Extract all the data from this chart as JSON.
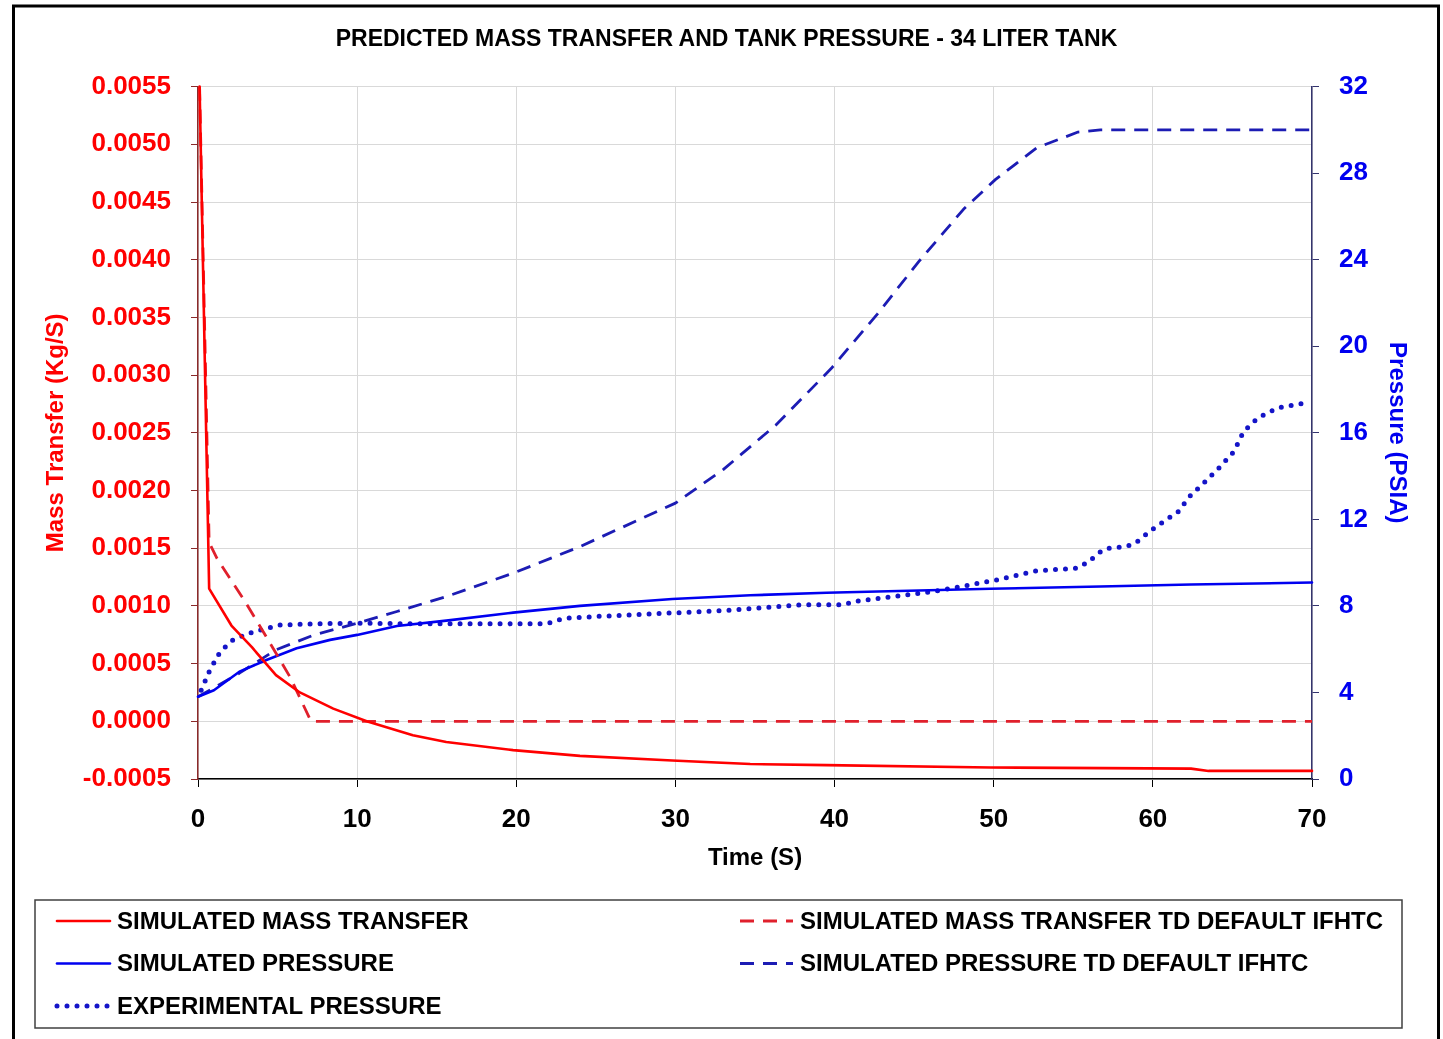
{
  "chart_data": {
    "type": "line",
    "title": "PREDICTED MASS TRANSFER AND TANK PRESSURE - 34 LITER TANK",
    "xlabel": "Time (S)",
    "ylabel": "Mass Transfer (Kg/S)",
    "y2label": "Pressure (PSIA)",
    "xlim": [
      0,
      70
    ],
    "xticks": [
      0,
      10,
      20,
      30,
      40,
      50,
      60,
      70
    ],
    "ylim": [
      -0.0005,
      0.0055
    ],
    "yticks": [
      {
        "value": -0.0005,
        "label": "-0.0005"
      },
      {
        "value": 0,
        "label": "0.0000"
      },
      {
        "value": 0.0005,
        "label": "0.0005"
      },
      {
        "value": 0.001,
        "label": "0.0010"
      },
      {
        "value": 0.0015,
        "label": "0.0015"
      },
      {
        "value": 0.002,
        "label": "0.0020"
      },
      {
        "value": 0.0025,
        "label": "0.0025"
      },
      {
        "value": 0.003,
        "label": "0.0030"
      },
      {
        "value": 0.0035,
        "label": "0.0035"
      },
      {
        "value": 0.004,
        "label": "0.0040"
      },
      {
        "value": 0.0045,
        "label": "0.0045"
      },
      {
        "value": 0.005,
        "label": "0.0050"
      },
      {
        "value": 0.0055,
        "label": "0.0055"
      }
    ],
    "y2lim": [
      0,
      32
    ],
    "y2ticks": [
      0,
      4,
      8,
      12,
      16,
      20,
      24,
      28,
      32
    ],
    "grid": true,
    "legend": "bottom",
    "marker": "none",
    "series": [
      {
        "name": "SIMULATED MASS TRANSFER",
        "color": "#ff0000",
        "line_style": "solid",
        "axis": "y",
        "x": [
          0.1,
          0.7,
          2.1,
          3.4,
          4.9,
          6.4,
          8.5,
          10.6,
          13.5,
          15.6,
          19.8,
          24,
          29.8,
          34.7,
          39.5,
          49.8,
          62.4,
          63.5,
          70
        ],
        "values": [
          0.0055,
          0.00115,
          0.00083,
          0.00064,
          0.0004,
          0.00025,
          0.00011,
          0.0,
          -0.00012,
          -0.00018,
          -0.00025,
          -0.0003,
          -0.00034,
          -0.00037,
          -0.00038,
          -0.0004,
          -0.00041,
          -0.00043,
          -0.00043
        ]
      },
      {
        "name": "SIMULATED MASS TRANSFER TD DEFAULT IFHTC",
        "color": "#e0202c",
        "line_style": "dashed",
        "axis": "y",
        "x": [
          0.1,
          0.7,
          1.2,
          2.9,
          4.3,
          5.8,
          7.1,
          70
        ],
        "values": [
          0.0055,
          0.00155,
          0.00141,
          0.00105,
          0.00073,
          0.00038,
          0.0,
          0.0
        ]
      },
      {
        "name": "SIMULATED PRESSURE",
        "color": "#0000f0",
        "line_style": "solid",
        "axis": "y2",
        "x": [
          0,
          1,
          2.6,
          4.3,
          6.2,
          8.3,
          10,
          12.5,
          15.6,
          19.8,
          24,
          29.8,
          34.7,
          39.5,
          49.8,
          56.7,
          62.4,
          70
        ],
        "values": [
          3.8,
          4.1,
          4.96,
          5.5,
          6.04,
          6.43,
          6.66,
          7.07,
          7.32,
          7.69,
          8.0,
          8.32,
          8.49,
          8.61,
          8.79,
          8.9,
          8.99,
          9.08
        ]
      },
      {
        "name": "SIMULATED PRESSURE TD DEFAULT IFHTC",
        "color": "#1c1cb4",
        "line_style": "dashed",
        "axis": "y2",
        "x": [
          0,
          2.6,
          4.9,
          7.3,
          10,
          12.5,
          15.6,
          19.8,
          24,
          30,
          33,
          36.3,
          39.8,
          42.7,
          45.3,
          48.1,
          50.1,
          52.7,
          55.3,
          56.7,
          70
        ],
        "values": [
          3.8,
          4.89,
          5.97,
          6.66,
          7.2,
          7.74,
          8.43,
          9.51,
          10.74,
          12.75,
          14.3,
          16.35,
          18.98,
          21.5,
          23.92,
          26.33,
          27.7,
          29.17,
          29.9,
          30,
          30
        ]
      },
      {
        "name": "EXPERIMENTAL PRESSURE",
        "color": "#1414c8",
        "line_style": "dotted",
        "axis": "y2",
        "x": [
          0.2,
          0.75,
          1.4,
          2.2,
          3.5,
          5.2,
          7.3,
          10,
          13.5,
          19.8,
          21.9,
          23,
          25.3,
          30.3,
          33.2,
          37.8,
          40.6,
          41.2,
          46.2,
          50.2,
          52.7,
          55.2,
          56,
          56.5,
          57,
          58.3,
          58.9,
          59.9,
          61,
          61.6,
          62.3,
          63.3,
          64.2,
          65.1,
          65.7,
          66.6,
          67.8,
          69.7
        ],
        "values": [
          4.1,
          5.04,
          5.89,
          6.43,
          6.81,
          7.12,
          7.17,
          7.2,
          7.17,
          7.17,
          7.17,
          7.43,
          7.52,
          7.69,
          7.79,
          8.05,
          8.05,
          8.2,
          8.66,
          9.2,
          9.62,
          9.74,
          10.05,
          10.4,
          10.64,
          10.74,
          10.9,
          11.5,
          12.06,
          12.36,
          13.05,
          13.75,
          14.41,
          15.14,
          16.06,
          16.68,
          17.14,
          17.4
        ]
      }
    ]
  }
}
